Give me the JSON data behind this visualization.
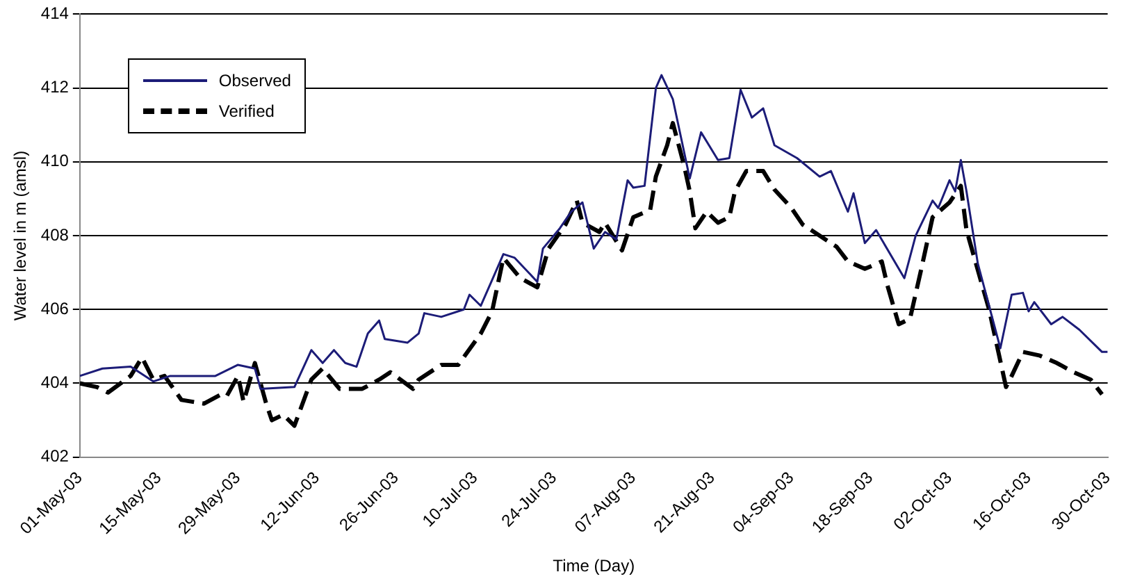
{
  "chart_data": {
    "type": "line",
    "xlabel": "Time (Day)",
    "ylabel": "Water level in m (amsl)",
    "xlim": [
      "--05-01",
      "--10-30"
    ],
    "xticks": [
      {
        "value": "--05-01",
        "label": "01-May-03"
      },
      {
        "value": "--05-15",
        "label": "15-May-03"
      },
      {
        "value": "--05-29",
        "label": "29-May-03"
      },
      {
        "value": "--06-12",
        "label": "12-Jun-03"
      },
      {
        "value": "--06-26",
        "label": "26-Jun-03"
      },
      {
        "value": "--07-10",
        "label": "10-Jul-03"
      },
      {
        "value": "--07-24",
        "label": "24-Jul-03"
      },
      {
        "value": "--08-07",
        "label": "07-Aug-03"
      },
      {
        "value": "--08-21",
        "label": "21-Aug-03"
      },
      {
        "value": "--09-04",
        "label": "04-Sep-03"
      },
      {
        "value": "--09-18",
        "label": "18-Sep-03"
      },
      {
        "value": "--10-02",
        "label": "02-Oct-03"
      },
      {
        "value": "--10-16",
        "label": "16-Oct-03"
      },
      {
        "value": "--10-30",
        "label": "30-Oct-03"
      }
    ],
    "ylim": [
      402,
      414
    ],
    "yticks": [
      402,
      404,
      406,
      408,
      410,
      412,
      414
    ],
    "grid": "y",
    "legend": "top left",
    "marker": "none",
    "series": [
      {
        "name": "Observed",
        "color": "#1c1c78",
        "line_style": "solid",
        "x": [
          "--05-01",
          "--05-05",
          "--05-10",
          "--05-14",
          "--05-17",
          "--05-25",
          "--05-29",
          "--06-01",
          "--06-02",
          "--06-08",
          "--06-11",
          "--06-13",
          "--06-15",
          "--06-17",
          "--06-19",
          "--06-21",
          "--06-23",
          "--06-24",
          "--06-28",
          "--06-30",
          "--07-01",
          "--07-04",
          "--07-08",
          "--07-09",
          "--07-11",
          "--07-13",
          "--07-15",
          "--07-17",
          "--07-21",
          "--07-22",
          "--07-25",
          "--07-27",
          "--07-29",
          "--07-31",
          "--08-02",
          "--08-04",
          "--08-06",
          "--08-07",
          "--08-09",
          "--08-11",
          "--08-12",
          "--08-14",
          "--08-17",
          "--08-19",
          "--08-22",
          "--08-24",
          "--08-26",
          "--08-28",
          "--08-30",
          "--09-01",
          "--09-05",
          "--09-09",
          "--09-11",
          "--09-14",
          "--09-15",
          "--09-17",
          "--09-19",
          "--09-24",
          "--09-26",
          "--09-29",
          "--09-30",
          "--10-02",
          "--10-03",
          "--10-04",
          "--10-05",
          "--10-07",
          "--10-11",
          "--10-13",
          "--10-15",
          "--10-16",
          "--10-17",
          "--10-20",
          "--10-22",
          "--10-25",
          "--10-29",
          "--10-30"
        ],
        "values": [
          404.2,
          404.4,
          404.45,
          404.05,
          404.2,
          404.2,
          404.5,
          404.4,
          403.85,
          403.9,
          404.9,
          404.55,
          404.9,
          404.55,
          404.45,
          405.35,
          405.7,
          405.2,
          405.1,
          405.35,
          405.9,
          405.8,
          406.0,
          406.4,
          406.1,
          406.8,
          407.5,
          407.4,
          406.75,
          407.65,
          408.2,
          408.65,
          408.9,
          407.65,
          408.1,
          407.9,
          409.5,
          409.3,
          409.35,
          412.0,
          412.35,
          411.7,
          409.55,
          410.8,
          410.05,
          410.1,
          411.95,
          411.2,
          411.45,
          410.45,
          410.1,
          409.6,
          409.75,
          408.65,
          409.15,
          407.8,
          408.15,
          406.85,
          408.0,
          408.95,
          408.75,
          409.5,
          409.2,
          410.05,
          409.2,
          407.25,
          404.95,
          406.4,
          406.45,
          405.95,
          406.2,
          405.6,
          405.8,
          405.45,
          404.85,
          404.85
        ]
      },
      {
        "name": "Verified",
        "color": "#000000",
        "line_style": "dashed",
        "x": [
          "--05-01",
          "--05-04",
          "--05-06",
          "--05-10",
          "--05-12",
          "--05-14",
          "--05-16",
          "--05-19",
          "--05-23",
          "--05-26",
          "--05-27",
          "--05-29",
          "--05-30",
          "--06-01",
          "--06-03",
          "--06-04",
          "--06-06",
          "--06-08",
          "--06-11",
          "--06-13",
          "--06-16",
          "--06-20",
          "--06-23",
          "--06-25",
          "--06-29",
          "--06-30",
          "--07-04",
          "--07-07",
          "--07-11",
          "--07-13",
          "--07-15",
          "--07-18",
          "--07-21",
          "--07-23",
          "--07-26",
          "--07-28",
          "--07-29",
          "--08-01",
          "--08-02",
          "--08-05",
          "--08-07",
          "--08-10",
          "--08-11",
          "--08-13",
          "--08-14",
          "--08-16",
          "--08-17",
          "--08-18",
          "--08-20",
          "--08-22",
          "--08-24",
          "--08-25",
          "--08-27",
          "--08-30",
          "--09-01",
          "--09-04",
          "--09-06",
          "--09-12",
          "--09-14",
          "--09-17",
          "--09-20",
          "--09-21",
          "--09-23",
          "--09-25",
          "--09-27",
          "--09-29",
          "--10-02",
          "--10-04",
          "--10-05",
          "--10-09",
          "--10-12",
          "--10-13",
          "--10-15",
          "--10-18",
          "--10-21",
          "--10-24",
          "--10-27",
          "--10-29"
        ],
        "values": [
          404.0,
          403.9,
          403.75,
          404.2,
          404.7,
          404.1,
          404.2,
          403.55,
          403.45,
          403.7,
          403.65,
          404.2,
          403.5,
          404.55,
          403.45,
          403.0,
          403.15,
          402.85,
          404.1,
          404.4,
          403.85,
          403.85,
          404.1,
          404.3,
          403.85,
          404.1,
          404.5,
          404.5,
          405.35,
          405.95,
          407.4,
          406.85,
          406.6,
          407.65,
          408.3,
          408.95,
          408.35,
          408.1,
          408.35,
          407.6,
          408.5,
          408.7,
          409.6,
          410.45,
          411.05,
          409.9,
          409.2,
          408.2,
          408.65,
          408.35,
          408.5,
          409.2,
          409.75,
          409.75,
          409.25,
          408.75,
          408.3,
          407.7,
          407.3,
          407.1,
          407.3,
          406.65,
          405.6,
          405.75,
          407.1,
          408.5,
          408.9,
          409.35,
          408.15,
          406.0,
          403.9,
          404.2,
          404.85,
          404.75,
          404.55,
          404.3,
          404.1,
          403.7
        ]
      }
    ]
  }
}
